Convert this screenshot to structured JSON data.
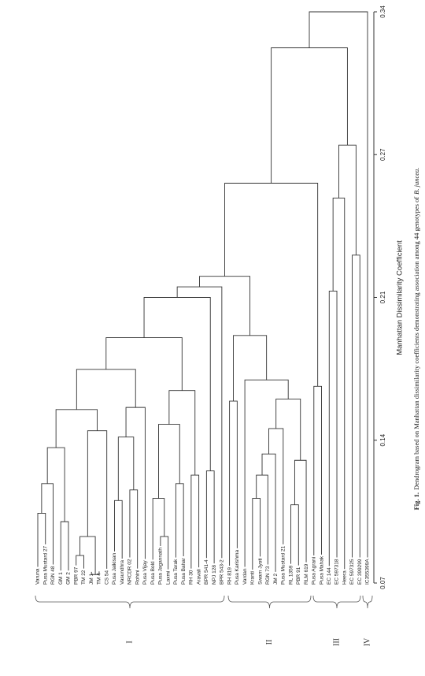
{
  "chart_data": {
    "type": "dendrogram",
    "axis_label": "Manhattan Dissimilarity Coefficient",
    "figure_label": "Fig. 1.",
    "caption": "Dendrogram based on Manhattan dissimilarity coefficients demonstrating association among 44 genotypes of",
    "caption_species": "B. juncea.",
    "ylim": [
      0.07,
      0.34
    ],
    "yticks": [
      0.07,
      {
        "value": 0.1375,
        "label": "0.14"
      },
      {
        "value": 0.205,
        "label": "0.21"
      },
      {
        "value": 0.2725,
        "label": "0.27"
      },
      0.34
    ],
    "groups": [
      "I",
      "II",
      "III",
      "IV"
    ],
    "color": "#333333",
    "tree": {
      "height": 0.34,
      "children": [
        {
          "height": 0.323,
          "children": [
            {
              "height": 0.259,
              "children": [
                {
                  "height": 0.215,
                  "children": [
                    {
                      "height": 0.21,
                      "children": [
                        {
                          "height": 0.205,
                          "children": [
                            {
                              "height": 0.186,
                              "children": [
                                {
                                  "height": 0.171,
                                  "children": [
                                    {
                                      "height": 0.152,
                                      "children": [
                                        {
                                          "height": 0.134,
                                          "children": [
                                            {
                                              "height": 0.117,
                                              "children": [
                                                {
                                                  "height": 0.103,
                                                  "children": [
                                                    "Varuna",
                                                    "Pusa Mustard 27"
                                                  ]
                                                },
                                                "RGN 48"
                                              ]
                                            },
                                            {
                                              "height": 0.099,
                                              "children": [
                                                "GM 1",
                                                "GM 2"
                                              ]
                                            }
                                          ]
                                        },
                                        {
                                          "height": 0.142,
                                          "children": [
                                            {
                                              "height": 0.092,
                                              "children": [
                                                {
                                                  "height": 0.083,
                                                  "children": [
                                                    "PBR 97",
                                                    "TM 22"
                                                  ]
                                                },
                                                {
                                                  "height": 0.074,
                                                  "children": [
                                                    "JM 1",
                                                    "TM 4"
                                                  ]
                                                }
                                              ]
                                            },
                                            "CS 54"
                                          ]
                                        }
                                      ]
                                    },
                                    {
                                      "height": 0.153,
                                      "children": [
                                        {
                                          "height": 0.139,
                                          "children": [
                                            {
                                              "height": 0.109,
                                              "children": [
                                                "Pusa Jaikisan",
                                                "Vasundhra"
                                              ]
                                            },
                                            {
                                              "height": 0.114,
                                              "children": [
                                                "NRCDR 02",
                                                "Rohini"
                                              ]
                                            }
                                          ]
                                        },
                                        "Pusa Vijay"
                                      ]
                                    }
                                  ]
                                },
                                {
                                  "height": 0.161,
                                  "children": [
                                    {
                                      "height": 0.145,
                                      "children": [
                                        {
                                          "height": 0.11,
                                          "children": [
                                            "Pusa Bold",
                                            {
                                              "height": 0.092,
                                              "children": [
                                                "Pusa Jagannath",
                                                "Laxmi"
                                              ]
                                            }
                                          ]
                                        },
                                        {
                                          "height": 0.117,
                                          "children": [
                                            "Pusa Tarak",
                                            "Pusa Bahar"
                                          ]
                                        }
                                      ]
                                    },
                                    {
                                      "height": 0.121,
                                      "children": [
                                        "RH 30",
                                        "Aravali"
                                      ]
                                    }
                                  ]
                                }
                              ]
                            },
                            {
                              "height": 0.123,
                              "children": [
                                "BPR 541-4",
                                "NPJ 128"
                              ]
                            }
                          ]
                        },
                        "BPR 543-2"
                      ]
                    },
                    {
                      "height": 0.187,
                      "children": [
                        {
                          "height": 0.156,
                          "children": [
                            "RH 819",
                            "Pusa Karishma"
                          ]
                        },
                        {
                          "height": 0.166,
                          "children": [
                            "Vardan",
                            {
                              "height": 0.157,
                              "children": [
                                {
                                  "height": 0.143,
                                  "children": [
                                    {
                                      "height": 0.131,
                                      "children": [
                                        {
                                          "height": 0.121,
                                          "children": [
                                            {
                                              "height": 0.11,
                                              "children": [
                                                "Kranti",
                                                "Swarn Jyoti"
                                              ]
                                            },
                                            "RGN 73"
                                          ]
                                        },
                                        "JM 2"
                                      ]
                                    },
                                    "Pusa Mustard 21"
                                  ]
                                },
                                {
                                  "height": 0.128,
                                  "children": [
                                    {
                                      "height": 0.107,
                                      "children": [
                                        "RL 1359",
                                        "PBR 91"
                                      ]
                                    },
                                    "RLM 619"
                                  ]
                                }
                              ]
                            }
                          ]
                        }
                      ]
                    }
                  ]
                },
                {
                  "height": 0.163,
                  "children": [
                    "Pusa Agrani",
                    "Pusa Mahak"
                  ]
                }
              ]
            },
            {
              "height": 0.277,
              "children": [
                {
                  "height": 0.252,
                  "children": [
                    {
                      "height": 0.208,
                      "children": [
                        "EC 144",
                        "EC 597318"
                      ]
                    },
                    "Heera"
                  ]
                },
                {
                  "height": 0.225,
                  "children": [
                    "EC 597325",
                    "EC 399299"
                  ]
                }
              ]
            }
          ]
        },
        "IC355399A"
      ]
    }
  }
}
